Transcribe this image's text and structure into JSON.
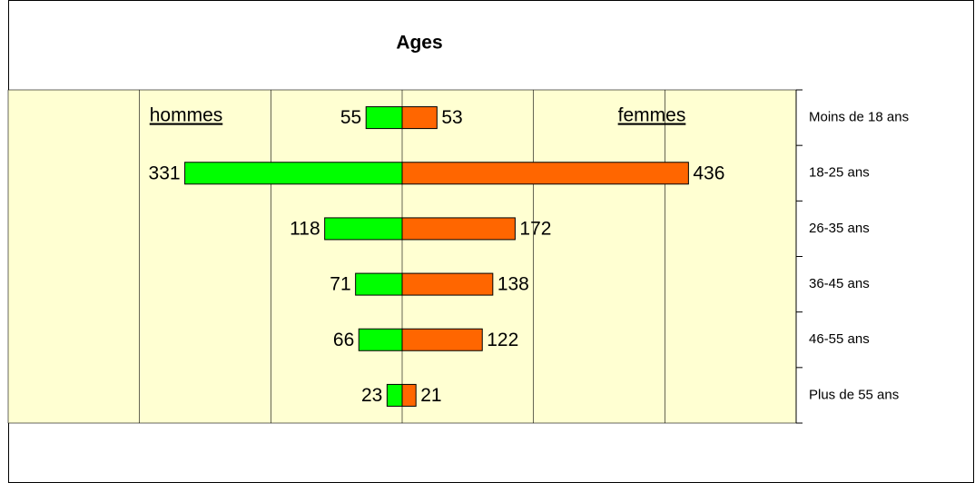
{
  "chart_data": {
    "type": "pyramid",
    "title": "Ages",
    "categories": [
      "Moins de 18 ans",
      "18-25 ans",
      "26-35 ans",
      "36-45 ans",
      "46-55 ans",
      "Plus de 55 ans"
    ],
    "series": [
      {
        "name": "hommes",
        "color": "#00ff00",
        "values": [
          55,
          331,
          118,
          71,
          66,
          23
        ]
      },
      {
        "name": "femmes",
        "color": "#ff6600",
        "values": [
          53,
          436,
          172,
          138,
          122,
          21
        ]
      }
    ],
    "xlim": [
      -600,
      600
    ],
    "xticks": [
      -400,
      -200,
      0,
      200,
      400
    ],
    "grid": true
  }
}
